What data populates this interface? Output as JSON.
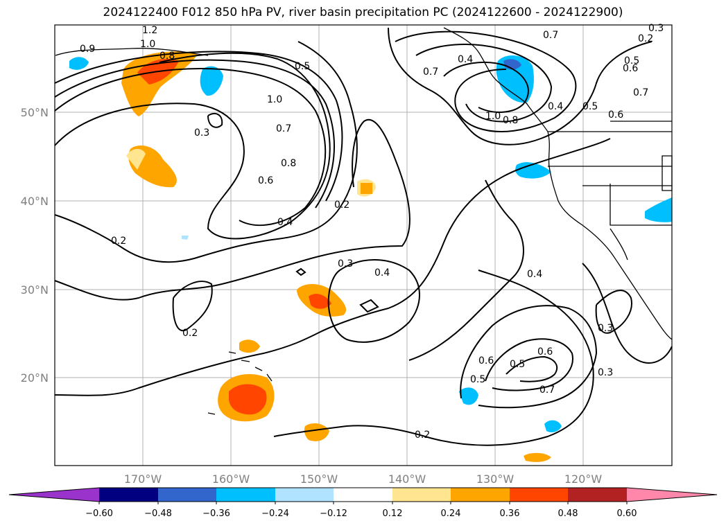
{
  "title": "2024122400 F012 850 hPa PV, river basin precipitation PC (2024122600 - 2024122900)",
  "lat_labels": [
    "50°N",
    "40°N",
    "30°N",
    "20°N"
  ],
  "lon_labels": [
    "170°W",
    "160°W",
    "150°W",
    "140°W",
    "130°W",
    "120°W"
  ],
  "colorbar": {
    "ticks": [
      "−0.60",
      "−0.48",
      "−0.36",
      "−0.24",
      "−0.12",
      "0.12",
      "0.24",
      "0.36",
      "0.48",
      "0.60"
    ],
    "colors": [
      "#9933cc",
      "#000080",
      "#3366cc",
      "#00bfff",
      "#afe3ff",
      "#ffffff",
      "#ffe58f",
      "#ffa500",
      "#ff4500",
      "#b22222",
      "#ff88aa",
      "#ff88aa"
    ]
  },
  "contour_labels": [
    "1.2",
    "1.0",
    "0.8",
    "0.9",
    "0.5",
    "1.0",
    "0.7",
    "0.8",
    "0.6",
    "0.4",
    "0.3",
    "0.2",
    "0.2",
    "0.3",
    "0.4",
    "0.2",
    "0.2",
    "0.7",
    "0.7",
    "0.5",
    "0.6",
    "0.5",
    "0.6",
    "0.7",
    "0.4",
    "1.0",
    "0.8",
    "0.4",
    "0.3",
    "0.3",
    "0.6",
    "0.5",
    "0.6",
    "0.5",
    "0.7",
    "0.2",
    "0.3",
    "0.4"
  ]
}
